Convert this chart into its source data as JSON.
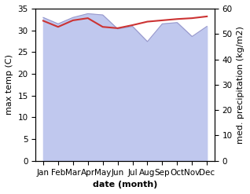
{
  "months": [
    "Jan",
    "Feb",
    "Mar",
    "Apr",
    "May",
    "Jun",
    "Jul",
    "Aug",
    "Sep",
    "Oct",
    "Nov",
    "Dec"
  ],
  "month_indices": [
    0,
    1,
    2,
    3,
    4,
    5,
    6,
    7,
    8,
    9,
    10,
    11
  ],
  "temp_max": [
    32.2,
    30.8,
    32.3,
    32.8,
    30.8,
    30.5,
    31.2,
    32.0,
    32.3,
    32.6,
    32.8,
    33.2
  ],
  "precipitation": [
    56.5,
    54.0,
    56.5,
    58.0,
    57.5,
    52.0,
    53.0,
    47.0,
    54.0,
    54.5,
    49.0,
    53.0
  ],
  "temp_ylim": [
    0,
    35
  ],
  "precip_ylim": [
    0,
    60
  ],
  "temp_color": "#cc3333",
  "precip_fill_color": "#c0c8ee",
  "precip_line_color": "#9999cc",
  "xlabel": "date (month)",
  "ylabel_left": "max temp (C)",
  "ylabel_right": "med. precipitation (kg/m2)",
  "label_fontsize": 8,
  "tick_fontsize": 7.5
}
